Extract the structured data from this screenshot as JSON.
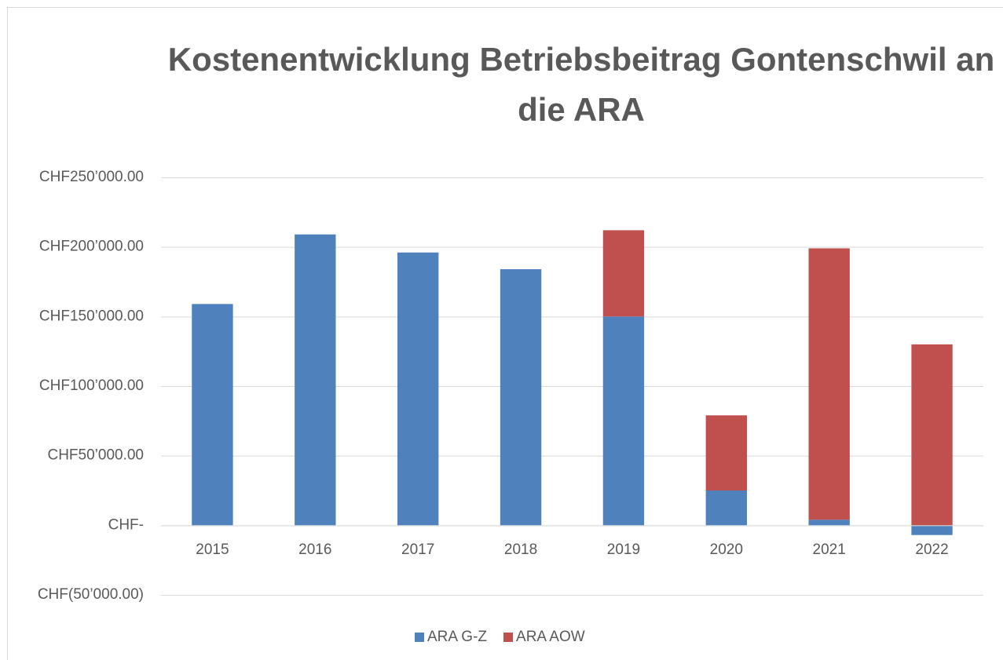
{
  "chart_data": {
    "type": "bar",
    "stacked": true,
    "title": "Kostenentwicklung Betriebsbeitrag Gontenschwil an die ARA",
    "categories": [
      "2015",
      "2016",
      "2017",
      "2018",
      "2019",
      "2020",
      "2021",
      "2022"
    ],
    "series": [
      {
        "name": "ARA G-Z",
        "color": "#4f81bd",
        "values": [
          159000,
          209000,
          196000,
          184000,
          150000,
          25000,
          4000,
          -7000
        ]
      },
      {
        "name": "ARA AOW",
        "color": "#c0504d",
        "values": [
          null,
          null,
          null,
          null,
          62000,
          54000,
          195000,
          130000
        ]
      }
    ],
    "ylim": [
      -50000,
      250000
    ],
    "yticks": [
      {
        "value": -50000,
        "label": "CHF(50’000.00)"
      },
      {
        "value": 0,
        "label": "CHF-"
      },
      {
        "value": 50000,
        "label": "CHF50’000.00"
      },
      {
        "value": 100000,
        "label": "CHF100’000.00"
      },
      {
        "value": 150000,
        "label": "CHF150’000.00"
      },
      {
        "value": 200000,
        "label": "CHF200’000.00"
      },
      {
        "value": 250000,
        "label": "CHF250’000.00"
      }
    ],
    "grid": true,
    "legend": "bottom"
  }
}
